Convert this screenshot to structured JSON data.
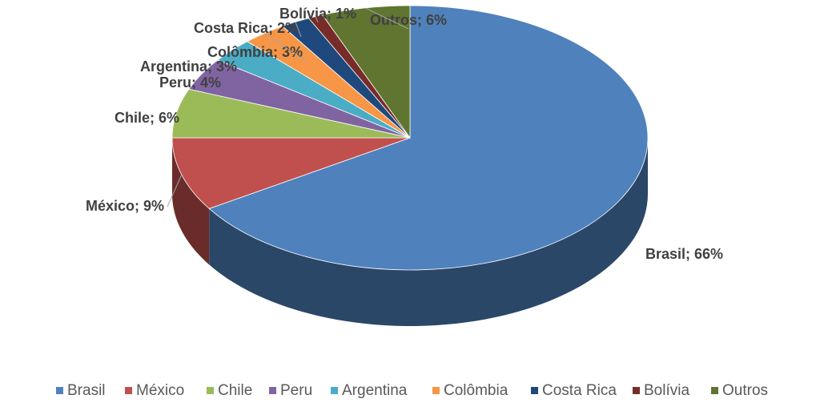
{
  "chart_data": {
    "type": "pie3d",
    "categories": [
      "Brasil",
      "México",
      "Chile",
      "Peru",
      "Argentina",
      "Colômbia",
      "Costa Rica",
      "Bolívia",
      "Outros"
    ],
    "values": [
      66,
      9,
      6,
      4,
      3,
      3,
      2,
      1,
      6
    ],
    "value_labels": [
      "Brasil; 66%",
      "México; 9%",
      "Chile; 6%",
      "Peru; 4%",
      "Argentina; 3%",
      "Colômbia; 3%",
      "Costa Rica; 2%",
      "Bolívia; 1%",
      "Outros; 6%"
    ],
    "colors": [
      "#4f81bd",
      "#c0504d",
      "#9bbb59",
      "#8064a2",
      "#4bacc6",
      "#f79646",
      "#1f497d",
      "#772c2a",
      "#5f7530"
    ],
    "legend": "bottom"
  }
}
